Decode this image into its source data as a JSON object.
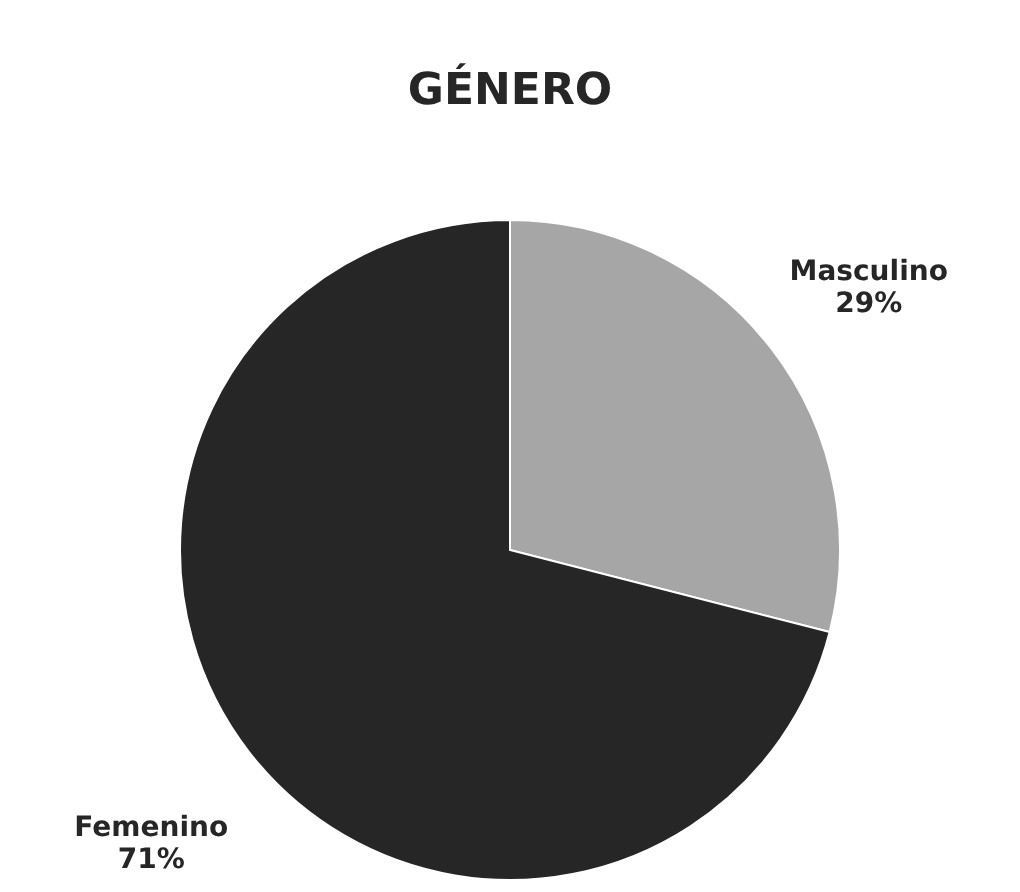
{
  "chart_data": {
    "type": "pie",
    "title": "GÉNERO",
    "categories": [
      "Masculino",
      "Femenino"
    ],
    "values": [
      29,
      71
    ],
    "value_labels": [
      "29%",
      "71%"
    ],
    "colors": [
      "#a6a6a6",
      "#262626"
    ]
  }
}
